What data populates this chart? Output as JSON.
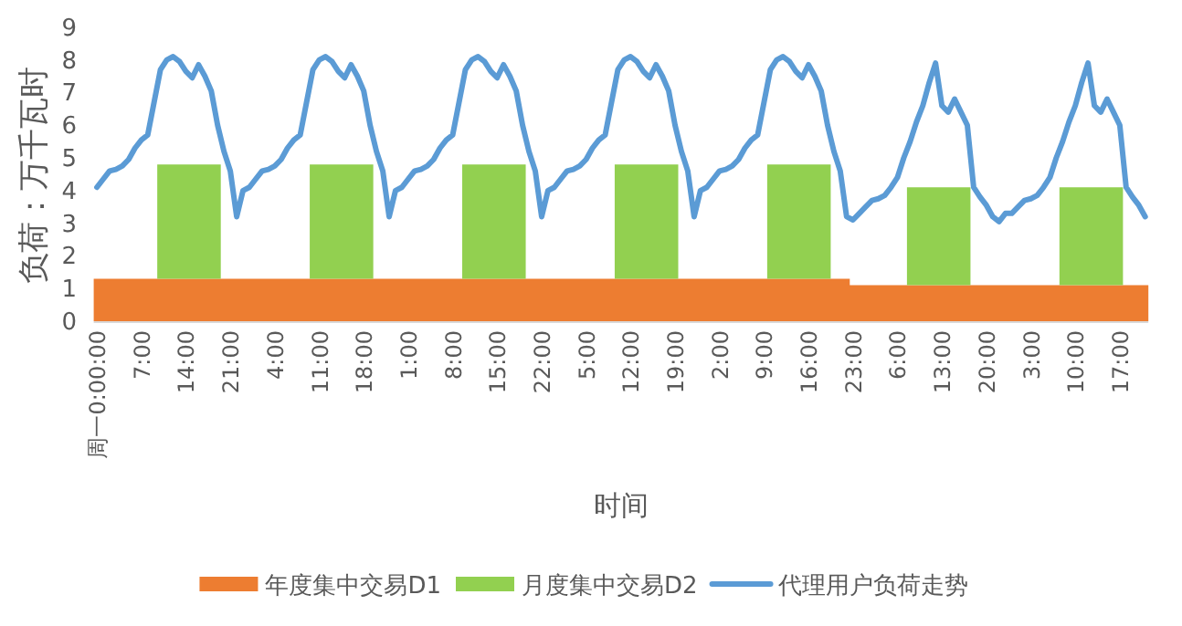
{
  "chart_data": {
    "type": "area",
    "stacked": true,
    "xlabel": "时间",
    "ylabel": "负荷：万千瓦时",
    "ylim": [
      0,
      9
    ],
    "yticks": [
      0,
      1,
      2,
      3,
      4,
      5,
      6,
      7,
      8,
      9
    ],
    "legend": "bottom",
    "categories": [
      "周一0:00:00",
      null,
      null,
      null,
      null,
      null,
      null,
      "7:00",
      null,
      null,
      null,
      null,
      null,
      null,
      "14:00",
      null,
      null,
      null,
      null,
      null,
      null,
      "21:00",
      null,
      null,
      null,
      null,
      null,
      null,
      "4:00",
      null,
      null,
      null,
      null,
      null,
      null,
      "11:00",
      null,
      null,
      null,
      null,
      null,
      null,
      "18:00",
      null,
      null,
      null,
      null,
      null,
      null,
      "1:00",
      null,
      null,
      null,
      null,
      null,
      null,
      "8:00",
      null,
      null,
      null,
      null,
      null,
      null,
      "15:00",
      null,
      null,
      null,
      null,
      null,
      null,
      "22:00",
      null,
      null,
      null,
      null,
      null,
      null,
      "5:00",
      null,
      null,
      null,
      null,
      null,
      null,
      "12:00",
      null,
      null,
      null,
      null,
      null,
      null,
      "19:00",
      null,
      null,
      null,
      null,
      null,
      null,
      "2:00",
      null,
      null,
      null,
      null,
      null,
      null,
      "9:00",
      null,
      null,
      null,
      null,
      null,
      null,
      "16:00",
      null,
      null,
      null,
      null,
      null,
      null,
      "23:00",
      null,
      null,
      null,
      null,
      null,
      null,
      "6:00",
      null,
      null,
      null,
      null,
      null,
      null,
      "13:00",
      null,
      null,
      null,
      null,
      null,
      null,
      "20:00",
      null,
      null,
      null,
      null,
      null,
      null,
      "3:00",
      null,
      null,
      null,
      null,
      null,
      null,
      "10:00",
      null,
      null,
      null,
      null,
      null,
      null,
      "17:00",
      null,
      null,
      null,
      null
    ],
    "series": [
      {
        "name": "年度集中交易D1",
        "color": "#ed7d31",
        "values": [
          1.3,
          1.3,
          1.3,
          1.3,
          1.3,
          1.3,
          1.3,
          1.3,
          1.3,
          1.3,
          1.3,
          1.3,
          1.3,
          1.3,
          1.3,
          1.3,
          1.3,
          1.3,
          1.3,
          1.3,
          1.3,
          1.3,
          1.3,
          1.3,
          1.3,
          1.3,
          1.3,
          1.3,
          1.3,
          1.3,
          1.3,
          1.3,
          1.3,
          1.3,
          1.3,
          1.3,
          1.3,
          1.3,
          1.3,
          1.3,
          1.3,
          1.3,
          1.3,
          1.3,
          1.3,
          1.3,
          1.3,
          1.3,
          1.3,
          1.3,
          1.3,
          1.3,
          1.3,
          1.3,
          1.3,
          1.3,
          1.3,
          1.3,
          1.3,
          1.3,
          1.3,
          1.3,
          1.3,
          1.3,
          1.3,
          1.3,
          1.3,
          1.3,
          1.3,
          1.3,
          1.3,
          1.3,
          1.3,
          1.3,
          1.3,
          1.3,
          1.3,
          1.3,
          1.3,
          1.3,
          1.3,
          1.3,
          1.3,
          1.3,
          1.3,
          1.3,
          1.3,
          1.3,
          1.3,
          1.3,
          1.3,
          1.3,
          1.3,
          1.3,
          1.3,
          1.3,
          1.3,
          1.3,
          1.3,
          1.3,
          1.3,
          1.3,
          1.3,
          1.3,
          1.3,
          1.3,
          1.3,
          1.3,
          1.3,
          1.3,
          1.3,
          1.3,
          1.3,
          1.3,
          1.3,
          1.3,
          1.3,
          1.3,
          1.3,
          1.1,
          1.1,
          1.1,
          1.1,
          1.1,
          1.1,
          1.1,
          1.1,
          1.1,
          1.1,
          1.1,
          1.1,
          1.1,
          1.1,
          1.1,
          1.1,
          1.1,
          1.1,
          1.1,
          1.1,
          1.1,
          1.1,
          1.1,
          1.1,
          1.1,
          1.1,
          1.1,
          1.1,
          1.1,
          1.1,
          1.1,
          1.1,
          1.1,
          1.1,
          1.1,
          1.1,
          1.1,
          1.1,
          1.1,
          1.1,
          1.1,
          1.1,
          1.1,
          1.1,
          1.1,
          1.1,
          1.1
        ]
      },
      {
        "name": "月度集中交易D2",
        "color": "#92d050",
        "values": [
          null,
          null,
          null,
          null,
          null,
          null,
          null,
          null,
          null,
          null,
          3.5,
          3.5,
          3.5,
          3.5,
          3.5,
          3.5,
          3.5,
          3.5,
          3.5,
          3.5,
          null,
          null,
          null,
          null,
          null,
          null,
          null,
          null,
          null,
          null,
          null,
          null,
          null,
          null,
          3.5,
          3.5,
          3.5,
          3.5,
          3.5,
          3.5,
          3.5,
          3.5,
          3.5,
          3.5,
          null,
          null,
          null,
          null,
          null,
          null,
          null,
          null,
          null,
          null,
          null,
          null,
          null,
          null,
          3.5,
          3.5,
          3.5,
          3.5,
          3.5,
          3.5,
          3.5,
          3.5,
          3.5,
          3.5,
          null,
          null,
          null,
          null,
          null,
          null,
          null,
          null,
          null,
          null,
          null,
          null,
          null,
          null,
          3.5,
          3.5,
          3.5,
          3.5,
          3.5,
          3.5,
          3.5,
          3.5,
          3.5,
          3.5,
          null,
          null,
          null,
          null,
          null,
          null,
          null,
          null,
          null,
          null,
          null,
          null,
          null,
          null,
          3.5,
          3.5,
          3.5,
          3.5,
          3.5,
          3.5,
          3.5,
          3.5,
          3.5,
          3.5,
          null,
          null,
          null,
          null,
          null,
          null,
          null,
          null,
          null,
          null,
          null,
          null,
          3.0,
          3.0,
          3.0,
          3.0,
          3.0,
          3.0,
          3.0,
          3.0,
          3.0,
          3.0,
          null,
          null,
          null,
          null,
          null,
          null,
          null,
          null,
          null,
          null,
          null,
          null,
          null,
          null,
          3.0,
          3.0,
          3.0,
          3.0,
          3.0,
          3.0,
          3.0,
          3.0,
          3.0,
          3.0,
          null,
          null,
          null,
          null
        ]
      },
      {
        "name": "代理用户负荷走势",
        "type": "line",
        "color": "#5b9bd5",
        "values": [
          4.1,
          4.35,
          4.6,
          4.65,
          4.75,
          4.95,
          5.3,
          5.55,
          5.7,
          6.7,
          7.7,
          8.0,
          8.1,
          7.95,
          7.65,
          7.45,
          7.85,
          7.5,
          7.05,
          6.0,
          5.2,
          4.6,
          3.2,
          4.0,
          4.1,
          4.35,
          4.6,
          4.65,
          4.75,
          4.95,
          5.3,
          5.55,
          5.7,
          6.7,
          7.7,
          8.0,
          8.1,
          7.95,
          7.65,
          7.45,
          7.85,
          7.5,
          7.05,
          6.0,
          5.2,
          4.6,
          3.2,
          4.0,
          4.1,
          4.35,
          4.6,
          4.65,
          4.75,
          4.95,
          5.3,
          5.55,
          5.7,
          6.7,
          7.7,
          8.0,
          8.1,
          7.95,
          7.65,
          7.45,
          7.85,
          7.5,
          7.05,
          6.0,
          5.2,
          4.6,
          3.2,
          4.0,
          4.1,
          4.35,
          4.6,
          4.65,
          4.75,
          4.95,
          5.3,
          5.55,
          5.7,
          6.7,
          7.7,
          8.0,
          8.1,
          7.95,
          7.65,
          7.45,
          7.85,
          7.5,
          7.05,
          6.0,
          5.2,
          4.6,
          3.2,
          4.0,
          4.1,
          4.35,
          4.6,
          4.65,
          4.75,
          4.95,
          5.3,
          5.55,
          5.7,
          6.7,
          7.7,
          8.0,
          8.1,
          7.95,
          7.65,
          7.45,
          7.85,
          7.5,
          7.05,
          6.0,
          5.2,
          4.6,
          3.2,
          3.1,
          3.3,
          3.5,
          3.7,
          3.75,
          3.85,
          4.1,
          4.4,
          5.0,
          5.5,
          6.1,
          6.6,
          7.3,
          7.9,
          6.6,
          6.4,
          6.8,
          6.4,
          6.0,
          4.1,
          3.8,
          3.55,
          3.2,
          3.05,
          3.3,
          3.3,
          3.5,
          3.7,
          3.75,
          3.85,
          4.1,
          4.4,
          5.0,
          5.5,
          6.1,
          6.6,
          7.3,
          7.9,
          6.6,
          6.4,
          6.8,
          6.4,
          6.0,
          4.1,
          3.8,
          3.55,
          3.2
        ]
      }
    ]
  }
}
